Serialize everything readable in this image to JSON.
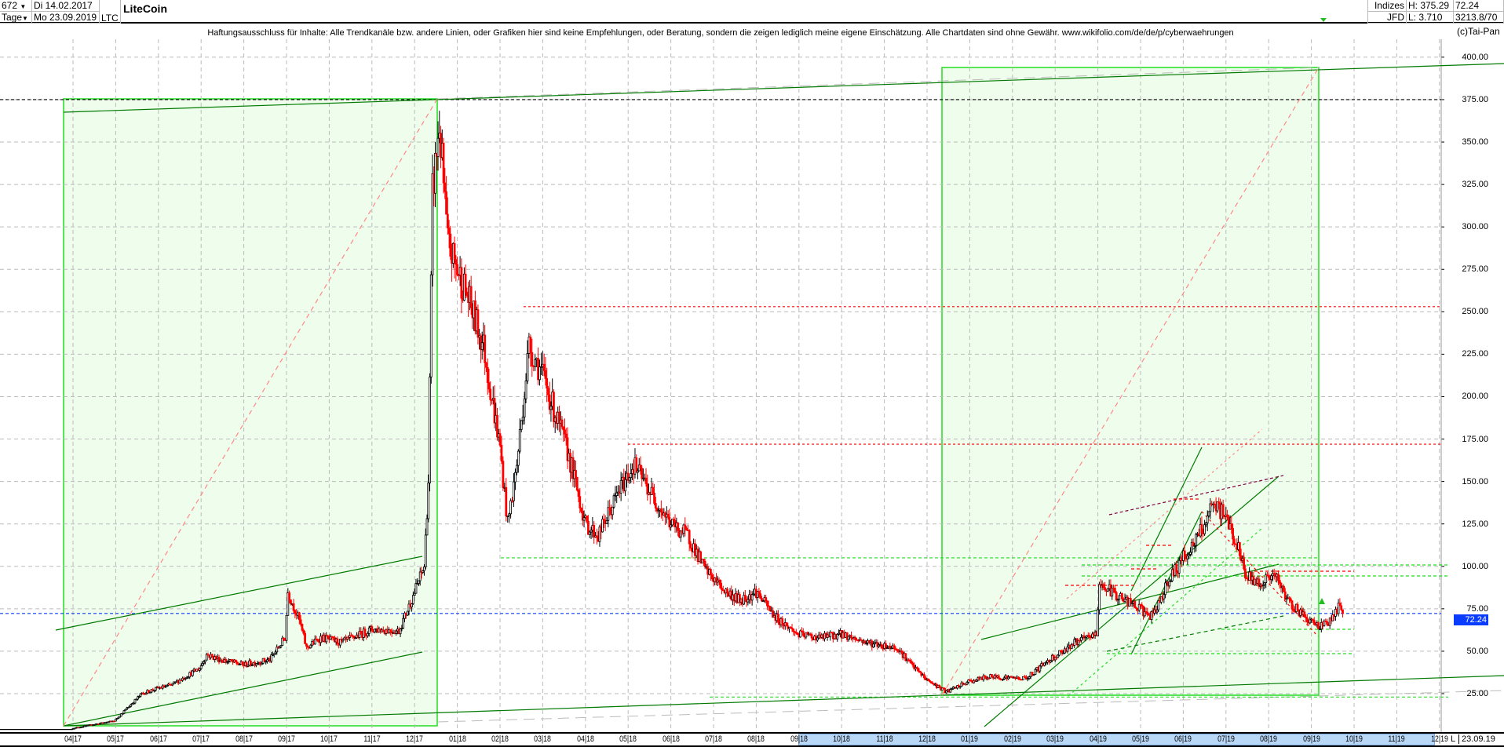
{
  "header": {
    "bars": "672",
    "period": "Tage",
    "start_date": "Di 14.02.2017",
    "end_date": "Mo 23.09.2019",
    "symbol": "LTC",
    "title": "LiteCoin",
    "source_1": "Indizes",
    "source_2": "JFD",
    "high": "H: 375.29",
    "low": "L: 3.710",
    "last": "72.24",
    "extra": "3213.8/70",
    "dropdown_icon": "triangle-down"
  },
  "disclaimer": "Haftungsausschluss für Inhalte: Alle Trendkanäle bzw. andere Linien, oder Grafiken hier sind keine Empfehlungen, oder Beratung, sondern die zeigen lediglich meine eigene Einschätzung. Alle Chartdaten sind ohne Gewähr.  www.wikifolio.com/de/de/p/cyberwaehrungen",
  "copyright": "(c)Tai-Pan",
  "xaxis": {
    "L_label": "L",
    "current_date": "23.09.19"
  },
  "colors": {
    "up": "#000000",
    "down": "#ff0000",
    "channel": "#007a00",
    "box_fill": "#effdec",
    "box_border": "#22dd22",
    "last_price": "#0a3cff"
  },
  "chart_data": {
    "type": "candlestick",
    "title": "LiteCoin",
    "ylim": [
      0,
      410
    ],
    "yticks": [
      "25.00",
      "50.00",
      "75.00",
      "100.00",
      "125.00",
      "150.00",
      "175.00",
      "200.00",
      "225.00",
      "250.00",
      "275.00",
      "300.00",
      "325.00",
      "350.00",
      "375.00",
      "400.00"
    ],
    "xticks": [
      "04|17",
      "05|17",
      "06|17",
      "07|17",
      "08|17",
      "09|17",
      "10|17",
      "11|17",
      "12|17",
      "01|18",
      "02|18",
      "03|18",
      "04|18",
      "05|18",
      "06|18",
      "07|18",
      "08|18",
      "09|18",
      "10|18",
      "11|18",
      "12|18",
      "01|19",
      "02|19",
      "03|19",
      "04|19",
      "05|19",
      "06|19",
      "07|19",
      "08|19",
      "09|19",
      "10|19",
      "11|19",
      "12|19"
    ],
    "grid": true,
    "last_price": 72.24,
    "high": 375.29,
    "low": 3.71,
    "horizontal_levels": [
      {
        "price": 375,
        "style": "black-dashed"
      },
      {
        "price": 253,
        "style": "red-dotted"
      },
      {
        "price": 172,
        "style": "red-dotted"
      },
      {
        "price": 105,
        "style": "green-dashed"
      },
      {
        "price": 72.24,
        "style": "blue-dotted"
      },
      {
        "price": 23,
        "style": "green-dashed"
      }
    ],
    "close_path": [
      [
        "2017-02-14",
        3.7
      ],
      [
        "2017-03-28",
        4
      ],
      [
        "2017-04-10",
        6
      ],
      [
        "2017-04-30",
        9
      ],
      [
        "2017-05-20",
        25
      ],
      [
        "2017-05-31",
        28
      ],
      [
        "2017-06-10",
        30
      ],
      [
        "2017-06-30",
        40
      ],
      [
        "2017-07-05",
        48
      ],
      [
        "2017-07-15",
        45
      ],
      [
        "2017-08-01",
        42
      ],
      [
        "2017-08-20",
        45
      ],
      [
        "2017-08-31",
        58
      ],
      [
        "2017-09-02",
        85
      ],
      [
        "2017-09-10",
        68
      ],
      [
        "2017-09-15",
        52
      ],
      [
        "2017-09-25",
        58
      ],
      [
        "2017-10-10",
        55
      ],
      [
        "2017-11-01",
        63
      ],
      [
        "2017-11-20",
        62
      ],
      [
        "2017-12-01",
        85
      ],
      [
        "2017-12-08",
        100
      ],
      [
        "2017-12-11",
        150
      ],
      [
        "2017-12-14",
        320
      ],
      [
        "2017-12-19",
        360
      ],
      [
        "2017-12-25",
        290
      ],
      [
        "2018-01-08",
        260
      ],
      [
        "2018-01-20",
        230
      ],
      [
        "2018-02-01",
        170
      ],
      [
        "2018-02-06",
        125
      ],
      [
        "2018-02-12",
        160
      ],
      [
        "2018-02-20",
        230
      ],
      [
        "2018-02-28",
        215
      ],
      [
        "2018-03-10",
        190
      ],
      [
        "2018-03-20",
        165
      ],
      [
        "2018-04-01",
        125
      ],
      [
        "2018-04-10",
        118
      ],
      [
        "2018-04-25",
        145
      ],
      [
        "2018-05-05",
        160
      ],
      [
        "2018-05-20",
        140
      ],
      [
        "2018-06-01",
        125
      ],
      [
        "2018-06-13",
        118
      ],
      [
        "2018-06-25",
        98
      ],
      [
        "2018-07-10",
        85
      ],
      [
        "2018-07-20",
        80
      ],
      [
        "2018-08-01",
        85
      ],
      [
        "2018-08-15",
        70
      ],
      [
        "2018-08-31",
        60
      ],
      [
        "2018-09-15",
        58
      ],
      [
        "2018-10-01",
        60
      ],
      [
        "2018-10-20",
        55
      ],
      [
        "2018-11-10",
        52
      ],
      [
        "2018-11-20",
        42
      ],
      [
        "2018-12-01",
        33
      ],
      [
        "2018-12-15",
        26
      ],
      [
        "2018-12-31",
        32
      ],
      [
        "2019-01-15",
        35
      ],
      [
        "2019-02-10",
        34
      ],
      [
        "2019-02-25",
        45
      ],
      [
        "2019-03-15",
        55
      ],
      [
        "2019-03-31",
        60
      ],
      [
        "2019-04-02",
        90
      ],
      [
        "2019-04-20",
        80
      ],
      [
        "2019-05-10",
        70
      ],
      [
        "2019-05-20",
        90
      ],
      [
        "2019-06-01",
        105
      ],
      [
        "2019-06-10",
        115
      ],
      [
        "2019-06-22",
        135
      ],
      [
        "2019-07-01",
        130
      ],
      [
        "2019-07-10",
        110
      ],
      [
        "2019-07-15",
        95
      ],
      [
        "2019-07-25",
        90
      ],
      [
        "2019-08-05",
        95
      ],
      [
        "2019-08-15",
        80
      ],
      [
        "2019-08-25",
        72
      ],
      [
        "2019-09-05",
        65
      ],
      [
        "2019-09-15",
        68
      ],
      [
        "2019-09-20",
        76
      ],
      [
        "2019-09-23",
        72.24
      ]
    ]
  }
}
